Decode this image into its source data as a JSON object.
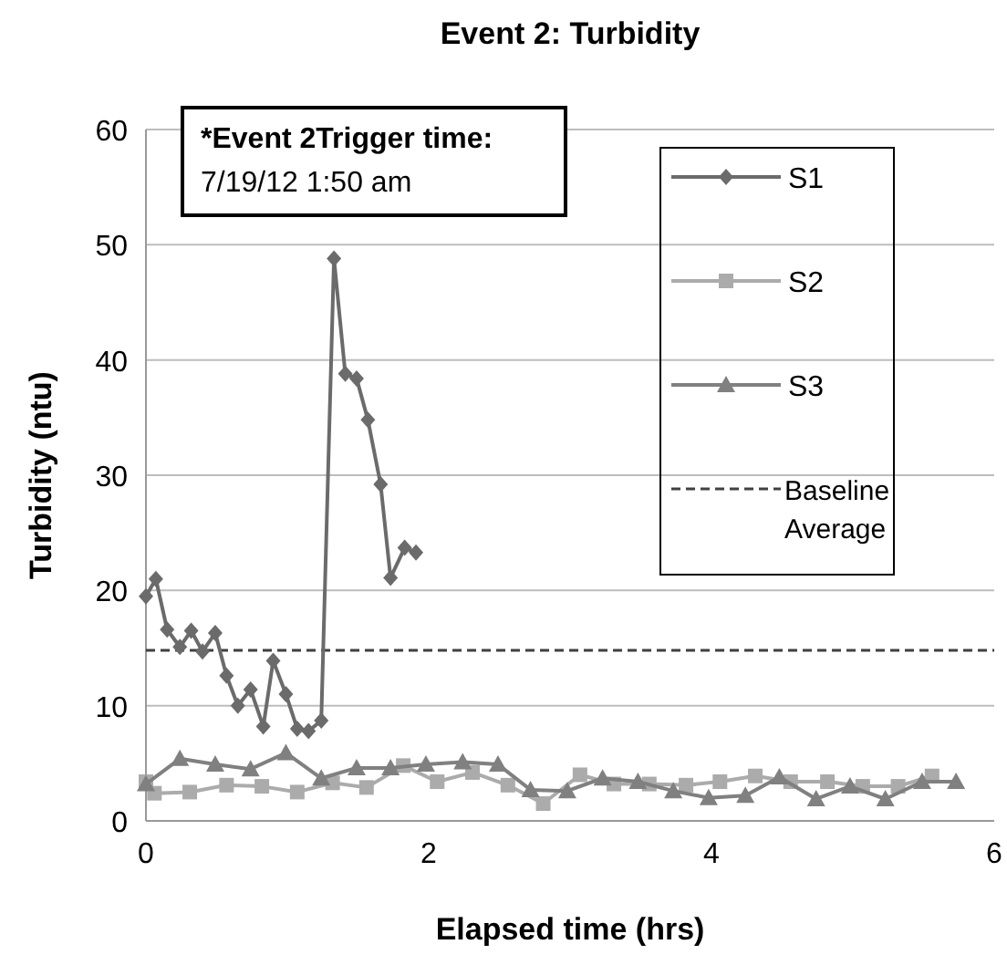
{
  "chart_data": {
    "type": "line",
    "title": "Event 2: Turbidity",
    "xlabel": "Elapsed time (hrs)",
    "ylabel": "Turbidity (ntu)",
    "annotations": [
      "*Event 2Trigger time:",
      "7/19/12 1:50 am"
    ],
    "xlim": [
      0,
      6
    ],
    "xticks": [
      0,
      2,
      4,
      6
    ],
    "ylim": [
      0,
      60
    ],
    "yticks": [
      0,
      10,
      20,
      30,
      40,
      50,
      60
    ],
    "grid": "y",
    "legend": "top right",
    "ref_lines": [
      {
        "axis": "y",
        "value": 14.8,
        "label": "Baseline Average",
        "color": "#404040",
        "line_style": "dashed"
      }
    ],
    "series": [
      {
        "name": "S1",
        "color": "#6b6b6b",
        "marker": "diamond",
        "x": [
          0,
          0.07,
          0.15,
          0.24,
          0.32,
          0.4,
          0.49,
          0.57,
          0.65,
          0.74,
          0.83,
          0.9,
          0.99,
          1.07,
          1.15,
          1.24,
          1.33,
          1.41,
          1.49,
          1.57,
          1.66,
          1.73,
          1.83,
          1.91
        ],
        "values": [
          19.5,
          21,
          16.6,
          15.1,
          16.5,
          14.7,
          16.3,
          12.6,
          10,
          11.4,
          8.2,
          13.9,
          11,
          8,
          7.8,
          8.7,
          48.8,
          38.8,
          38.4,
          34.8,
          29.2,
          21.1,
          23.7,
          23.3
        ]
      },
      {
        "name": "S2",
        "color": "#ababab",
        "marker": "square",
        "x": [
          0,
          0.06,
          0.31,
          0.57,
          0.82,
          1.07,
          1.32,
          1.56,
          1.82,
          2.06,
          2.31,
          2.56,
          2.81,
          3.07,
          3.31,
          3.56,
          3.82,
          4.06,
          4.31,
          4.56,
          4.82,
          5.07,
          5.32,
          5.56
        ],
        "values": [
          3.4,
          2.4,
          2.5,
          3.1,
          3,
          2.5,
          3.3,
          2.9,
          4.8,
          3.4,
          4.2,
          3.1,
          1.5,
          4,
          3.2,
          3.2,
          3.1,
          3.4,
          3.9,
          3.4,
          3.4,
          3,
          3,
          3.9
        ]
      },
      {
        "name": "S3",
        "color": "#808080",
        "marker": "triangle",
        "x": [
          0,
          0.24,
          0.49,
          0.74,
          0.99,
          1.24,
          1.49,
          1.73,
          1.98,
          2.24,
          2.49,
          2.72,
          2.98,
          3.23,
          3.48,
          3.73,
          3.98,
          4.24,
          4.48,
          4.74,
          4.98,
          5.23,
          5.49,
          5.73
        ],
        "values": [
          3.2,
          5.4,
          4.9,
          4.5,
          5.9,
          3.7,
          4.6,
          4.6,
          4.9,
          5.1,
          4.9,
          2.7,
          2.6,
          3.7,
          3.4,
          2.6,
          2,
          2.2,
          3.8,
          1.9,
          3,
          1.9,
          3.4,
          3.4
        ]
      }
    ]
  }
}
